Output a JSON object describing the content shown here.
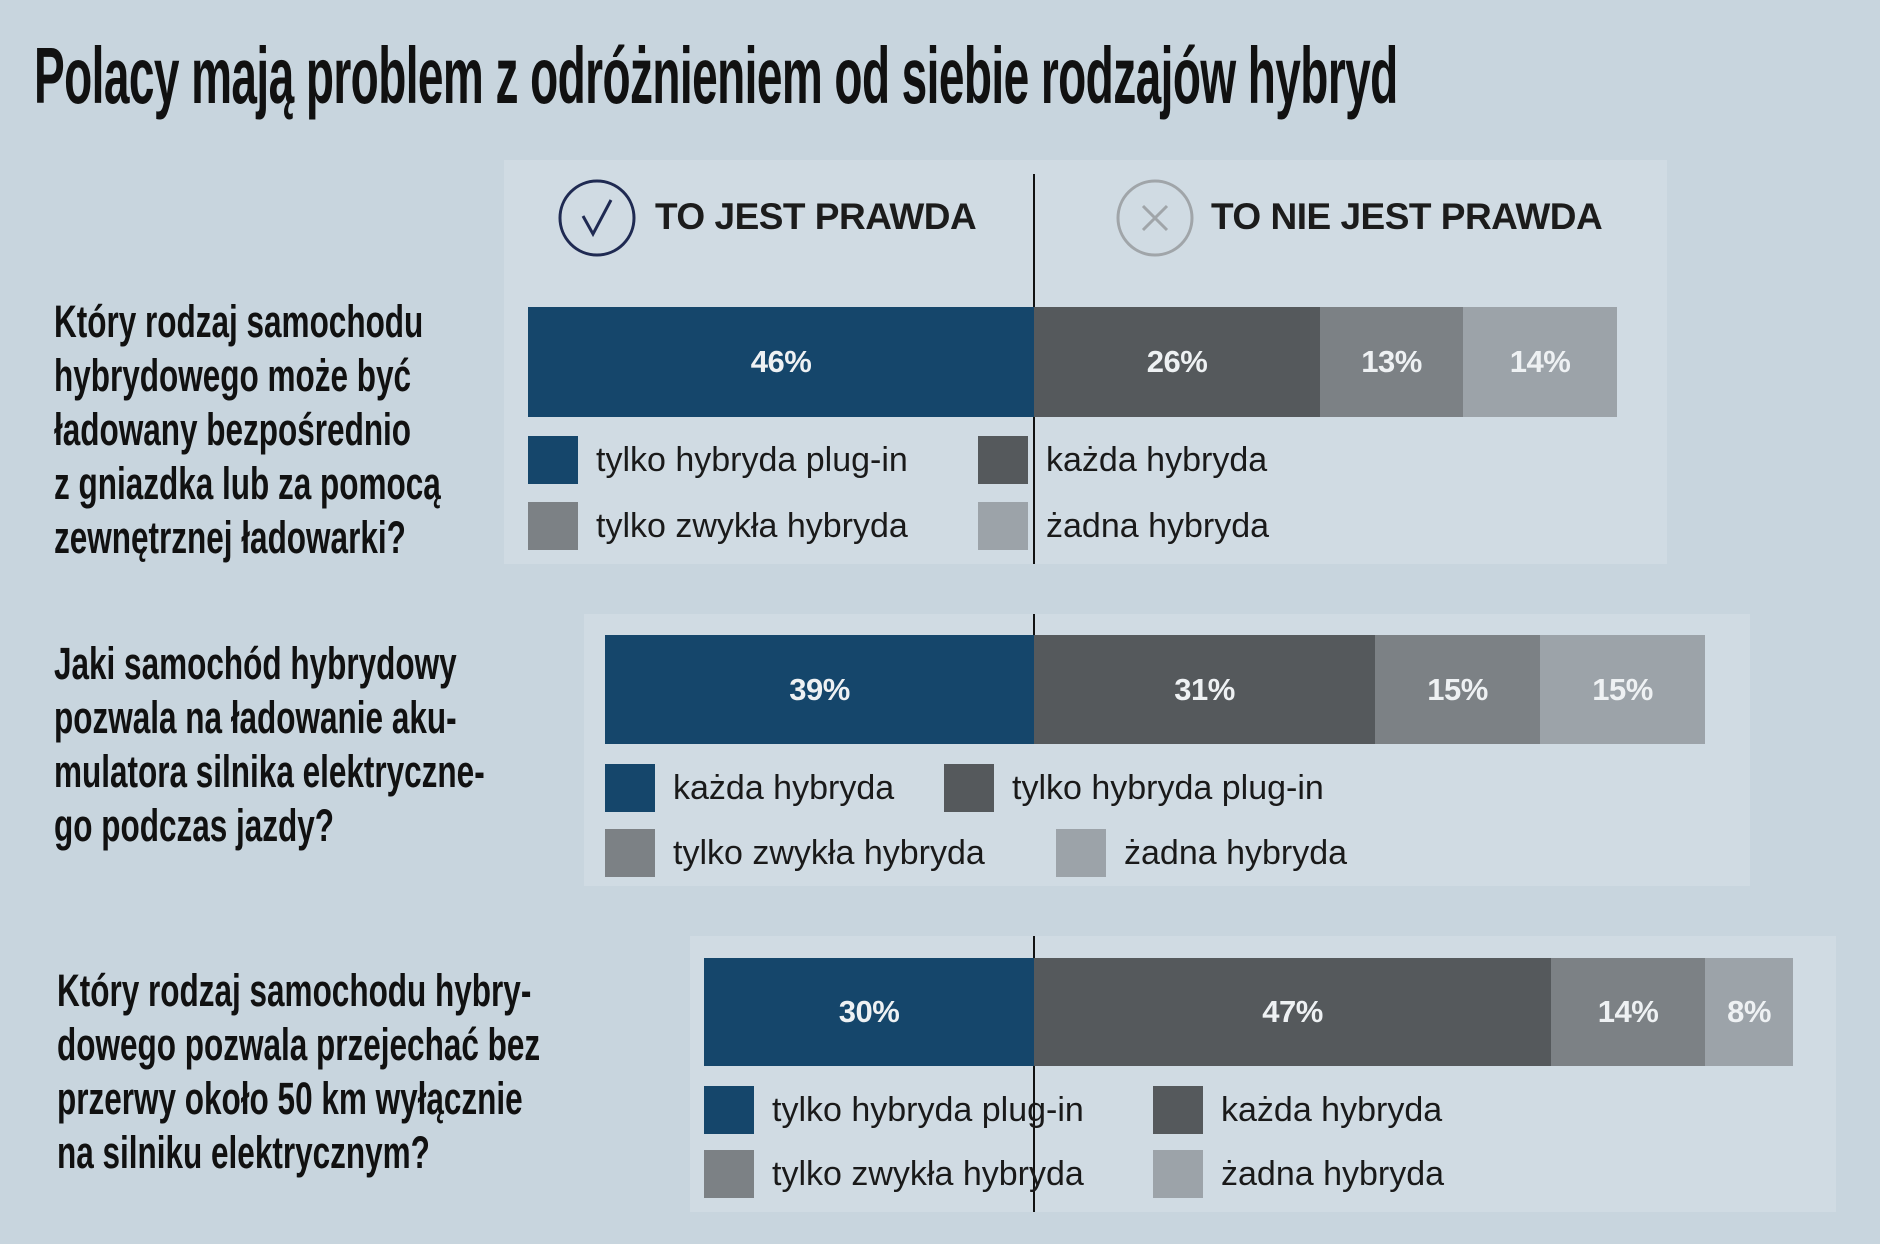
{
  "title": "Polacy mają problem z odróżnieniem od siebie rodzajów hybryd",
  "header": {
    "true_label": "TO JEST PRAWDA",
    "false_label": "TO NIE JEST PRAWDA",
    "true_icon": "check-circle-icon",
    "false_icon": "x-circle-icon"
  },
  "colors": [
    "#15466b",
    "#55595c",
    "#7c8185",
    "#9ca3a9"
  ],
  "chart_data": [
    {
      "type": "bar",
      "orientation": "horizontal-stacked-diverging",
      "question": [
        "Który rodzaj samochodu",
        "hybrydowego może być",
        "ładowany bezpośrednio",
        "z gniazdka lub za pomocą",
        "zewnętrznej ładowarki?"
      ],
      "series": [
        {
          "name": "tylko hybryda plug-in",
          "value": 46,
          "label": "46%"
        },
        {
          "name": "każda hybryda",
          "value": 26,
          "label": "26%"
        },
        {
          "name": "tylko zwykła hybryda",
          "value": 13,
          "label": "13%"
        },
        {
          "name": "żadna hybryda",
          "value": 14,
          "label": "14%"
        }
      ]
    },
    {
      "type": "bar",
      "orientation": "horizontal-stacked-diverging",
      "question": [
        "Jaki samochód hybrydowy",
        "pozwala na ładowanie aku-",
        "mulatora silnika elektryczne-",
        "go podczas jazdy?"
      ],
      "series": [
        {
          "name": "każda hybryda",
          "value": 39,
          "label": "39%"
        },
        {
          "name": "tylko hybryda plug-in",
          "value": 31,
          "label": "31%"
        },
        {
          "name": "tylko zwykła hybryda",
          "value": 15,
          "label": "15%"
        },
        {
          "name": "żadna hybryda",
          "value": 15,
          "label": "15%"
        }
      ]
    },
    {
      "type": "bar",
      "orientation": "horizontal-stacked-diverging",
      "question": [
        "Który rodzaj samochodu hybry-",
        "dowego pozwala przejechać bez",
        "przerwy około 50 km wyłącznie",
        "na silniku elektrycznym?"
      ],
      "series": [
        {
          "name": "tylko hybryda plug-in",
          "value": 30,
          "label": "30%"
        },
        {
          "name": "każda hybryda",
          "value": 47,
          "label": "47%"
        },
        {
          "name": "tylko zwykła hybryda",
          "value": 14,
          "label": "14%"
        },
        {
          "name": "żadna hybryda",
          "value": 8,
          "label": "8%"
        }
      ]
    }
  ]
}
